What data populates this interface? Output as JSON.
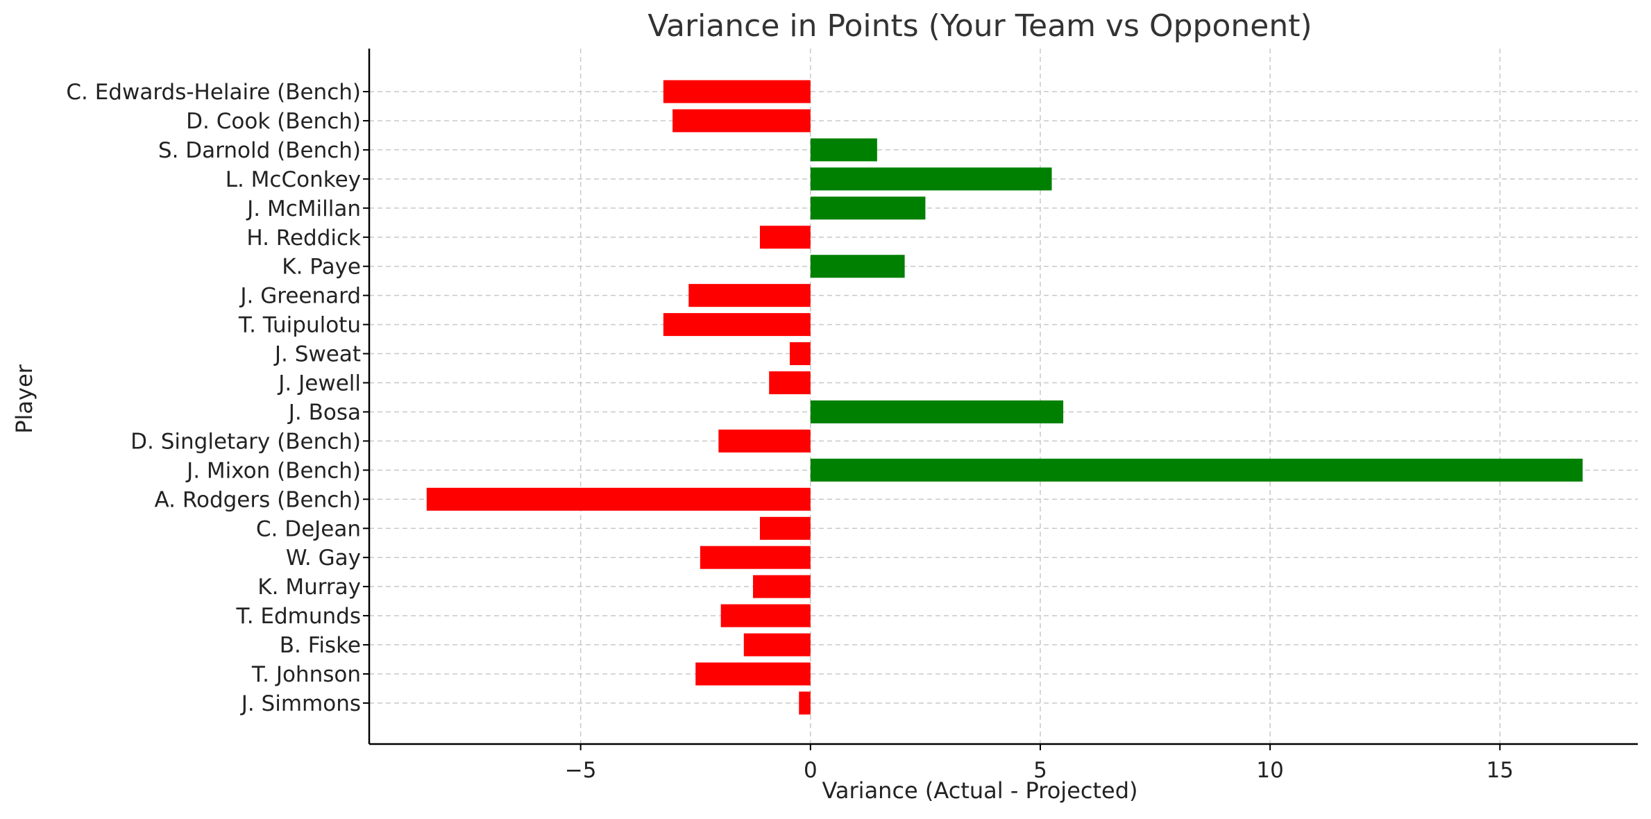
{
  "chart_data": {
    "type": "bar",
    "orientation": "horizontal",
    "title": "Variance in Points (Your Team vs Opponent)",
    "xlabel": "Variance (Actual - Projected)",
    "ylabel": "Player",
    "xlim": [
      -9.6,
      18.0
    ],
    "xticks": [
      -5,
      0,
      5,
      10,
      15
    ],
    "xtick_labels": [
      "−5",
      "0",
      "5",
      "10",
      "15"
    ],
    "grid": true,
    "categories": [
      "C. Edwards-Helaire (Bench)",
      "D. Cook (Bench)",
      "S. Darnold (Bench)",
      "L. McConkey",
      "J. McMillan",
      "H. Reddick",
      "K. Paye",
      "J. Greenard",
      "T. Tuipulotu",
      "J. Sweat",
      "J. Jewell",
      "J. Bosa",
      "D. Singletary (Bench)",
      "J. Mixon (Bench)",
      "A. Rodgers (Bench)",
      "C. DeJean",
      "W. Gay",
      "K. Murray",
      "T. Edmunds",
      "B. Fiske",
      "T. Johnson",
      "J. Simmons"
    ],
    "values": [
      -3.2,
      -3.0,
      1.45,
      5.25,
      2.5,
      -1.1,
      2.05,
      -2.65,
      -3.2,
      -0.45,
      -0.9,
      5.5,
      -2.0,
      16.8,
      -8.35,
      -1.1,
      -2.4,
      -1.25,
      -1.95,
      -1.45,
      -2.5,
      -0.25
    ],
    "colors": {
      "positive": "#008000",
      "negative": "#ff0000"
    }
  }
}
